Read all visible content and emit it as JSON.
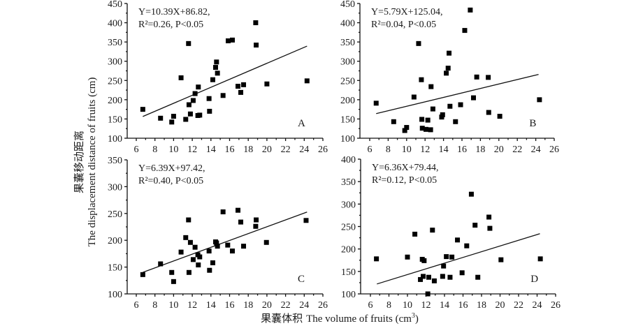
{
  "chart_data": {
    "type": "scatter",
    "xlabel_cn": "果囊体积",
    "xlabel_en": "The volume of fruits (cm",
    "xlabel_sup": "3",
    "xlabel_close": ")",
    "ylabel_cn": "果囊移动距离",
    "ylabel_en": "The displacement distance of fruits (cm)",
    "panels": [
      {
        "label": "A",
        "equation": "Y=10.39X+86.82,",
        "stats": "R²=0.26, P<0.05",
        "slope": 10.39,
        "intercept": 86.82,
        "xlim": [
          6,
          26
        ],
        "ylim": [
          100,
          450
        ],
        "xticks": [
          6,
          8,
          10,
          12,
          14,
          16,
          18,
          20,
          22,
          24,
          26
        ],
        "yticks": [
          100,
          150,
          200,
          250,
          300,
          350,
          400,
          450
        ],
        "fit_x": [
          6.7,
          24.3
        ],
        "points": [
          [
            6.7,
            175
          ],
          [
            8.6,
            152
          ],
          [
            9.8,
            142
          ],
          [
            10.0,
            157
          ],
          [
            10.8,
            257
          ],
          [
            11.3,
            149
          ],
          [
            11.6,
            346
          ],
          [
            11.65,
            187
          ],
          [
            11.8,
            163
          ],
          [
            12.1,
            198
          ],
          [
            12.3,
            216
          ],
          [
            12.6,
            159
          ],
          [
            12.65,
            233
          ],
          [
            12.8,
            160
          ],
          [
            13.8,
            203
          ],
          [
            13.85,
            170
          ],
          [
            14.2,
            252
          ],
          [
            14.5,
            284
          ],
          [
            14.6,
            298
          ],
          [
            14.7,
            269
          ],
          [
            15.3,
            211
          ],
          [
            15.85,
            353
          ],
          [
            16.3,
            355
          ],
          [
            16.9,
            235
          ],
          [
            17.2,
            219
          ],
          [
            17.5,
            239
          ],
          [
            18.8,
            400
          ],
          [
            18.85,
            342
          ],
          [
            20.0,
            241
          ],
          [
            24.3,
            249
          ]
        ]
      },
      {
        "label": "B",
        "equation": "Y=5.79X+125.04,",
        "stats": "R²=0.04, P<0.05",
        "slope": 5.79,
        "intercept": 125.04,
        "xlim": [
          6,
          26
        ],
        "ylim": [
          100,
          450
        ],
        "xticks": [
          6,
          8,
          10,
          12,
          14,
          16,
          18,
          20,
          22,
          24,
          26
        ],
        "yticks": [
          100,
          150,
          200,
          250,
          300,
          350,
          400,
          450
        ],
        "fit_x": [
          6.7,
          24.3
        ],
        "points": [
          [
            6.7,
            191
          ],
          [
            8.6,
            143
          ],
          [
            9.8,
            120
          ],
          [
            10.0,
            128
          ],
          [
            10.8,
            207
          ],
          [
            11.3,
            346
          ],
          [
            11.6,
            252
          ],
          [
            11.65,
            149
          ],
          [
            11.7,
            126
          ],
          [
            12.1,
            123
          ],
          [
            12.3,
            147
          ],
          [
            12.6,
            122
          ],
          [
            12.65,
            234
          ],
          [
            12.85,
            176
          ],
          [
            13.8,
            155
          ],
          [
            13.9,
            161
          ],
          [
            14.3,
            269
          ],
          [
            14.5,
            282
          ],
          [
            14.6,
            321
          ],
          [
            14.7,
            183
          ],
          [
            15.3,
            143
          ],
          [
            15.85,
            187
          ],
          [
            16.3,
            380
          ],
          [
            16.9,
            433
          ],
          [
            17.25,
            205
          ],
          [
            17.6,
            259
          ],
          [
            18.85,
            258
          ],
          [
            18.9,
            167
          ],
          [
            20.1,
            157
          ],
          [
            24.4,
            200
          ]
        ]
      },
      {
        "label": "C",
        "equation": "Y=6.39X+97.42,",
        "stats": "R²=0.40, P<0.05",
        "slope": 6.39,
        "intercept": 97.42,
        "xlim": [
          6,
          26
        ],
        "ylim": [
          100,
          350
        ],
        "xticks": [
          6,
          8,
          10,
          12,
          14,
          16,
          18,
          20,
          22,
          24,
          26
        ],
        "yticks": [
          100,
          150,
          200,
          250,
          300,
          350
        ],
        "fit_x": [
          6.7,
          24.3
        ],
        "points": [
          [
            6.7,
            136
          ],
          [
            8.6,
            156
          ],
          [
            9.8,
            140
          ],
          [
            10.0,
            123
          ],
          [
            10.8,
            178
          ],
          [
            11.3,
            205
          ],
          [
            11.6,
            238
          ],
          [
            11.65,
            140
          ],
          [
            11.8,
            196
          ],
          [
            12.1,
            164
          ],
          [
            12.3,
            187
          ],
          [
            12.6,
            173
          ],
          [
            12.65,
            154
          ],
          [
            12.8,
            169
          ],
          [
            13.8,
            180
          ],
          [
            13.85,
            144
          ],
          [
            14.2,
            158
          ],
          [
            14.5,
            197
          ],
          [
            14.6,
            195
          ],
          [
            14.7,
            189
          ],
          [
            15.3,
            253
          ],
          [
            15.8,
            191
          ],
          [
            16.3,
            180
          ],
          [
            16.9,
            256
          ],
          [
            17.2,
            234
          ],
          [
            17.5,
            189
          ],
          [
            18.8,
            226
          ],
          [
            18.85,
            238
          ],
          [
            19.95,
            196
          ],
          [
            24.2,
            237
          ]
        ]
      },
      {
        "label": "D",
        "equation": "Y=6.36X+79.44,",
        "stats": "R²=0.12, P<0.05",
        "slope": 6.36,
        "intercept": 79.44,
        "xlim": [
          6,
          26
        ],
        "ylim": [
          100,
          400
        ],
        "xticks": [
          6,
          8,
          10,
          12,
          14,
          16,
          18,
          20,
          22,
          24,
          26
        ],
        "yticks": [
          100,
          150,
          200,
          250,
          300,
          350,
          400
        ],
        "fit_x": [
          6.7,
          24.3
        ],
        "points": [
          [
            6.65,
            178
          ],
          [
            10.0,
            182
          ],
          [
            10.8,
            233
          ],
          [
            11.4,
            132
          ],
          [
            11.6,
            177
          ],
          [
            11.7,
            139
          ],
          [
            11.8,
            174
          ],
          [
            12.2,
            100
          ],
          [
            12.3,
            137
          ],
          [
            12.7,
            242
          ],
          [
            12.9,
            129
          ],
          [
            13.8,
            139
          ],
          [
            13.9,
            162
          ],
          [
            14.2,
            183
          ],
          [
            14.6,
            137
          ],
          [
            14.8,
            182
          ],
          [
            15.4,
            220
          ],
          [
            15.9,
            147
          ],
          [
            16.4,
            207
          ],
          [
            16.9,
            322
          ],
          [
            17.3,
            253
          ],
          [
            17.6,
            137
          ],
          [
            18.8,
            271
          ],
          [
            18.9,
            246
          ],
          [
            20.1,
            176
          ],
          [
            24.35,
            178
          ]
        ]
      }
    ]
  }
}
